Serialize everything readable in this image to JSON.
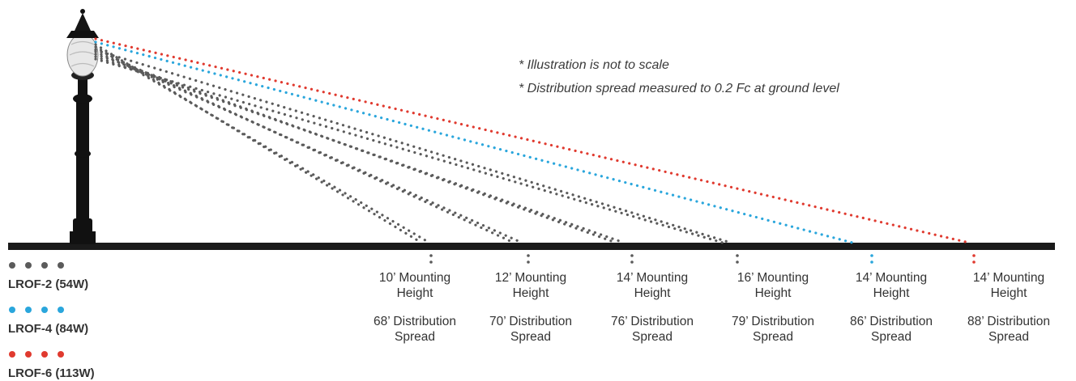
{
  "notes": [
    "* Illustration is not to scale",
    "* Distribution spread measured to 0.2 Fc at ground level"
  ],
  "legend": [
    {
      "label": "LROF-2 (54W)",
      "color": "#5b5b5b"
    },
    {
      "label": "LROF-4 (84W)",
      "color": "#2aa6dc"
    },
    {
      "label": "LROF-6 (113W)",
      "color": "#e03a2f"
    }
  ],
  "columns": [
    {
      "height_line1": "10’ Mounting",
      "height_line2": "Height",
      "spread_line1": "68’ Distribution",
      "spread_line2": "Spread",
      "model": "LROF-2"
    },
    {
      "height_line1": "12’ Mounting",
      "height_line2": "Height",
      "spread_line1": "70’ Distribution",
      "spread_line2": "Spread",
      "model": "LROF-2"
    },
    {
      "height_line1": "14’ Mounting",
      "height_line2": "Height",
      "spread_line1": "76’ Distribution",
      "spread_line2": "Spread",
      "model": "LROF-2"
    },
    {
      "height_line1": "16’ Mounting",
      "height_line2": "Height",
      "spread_line1": "79’ Distribution",
      "spread_line2": "Spread",
      "model": "LROF-2"
    },
    {
      "height_line1": "14’ Mounting",
      "height_line2": "Height",
      "spread_line1": "86’ Distribution",
      "spread_line2": "Spread",
      "model": "LROF-4"
    },
    {
      "height_line1": "14’ Mounting",
      "height_line2": "Height",
      "spread_line1": "88’ Distribution",
      "spread_line2": "Spread",
      "model": "LROF-6"
    }
  ],
  "colors": {
    "ground": "#1a1a1a",
    "pole": "#111111",
    "text": "#333333"
  },
  "icons": [
    "street-lamp-icon"
  ]
}
